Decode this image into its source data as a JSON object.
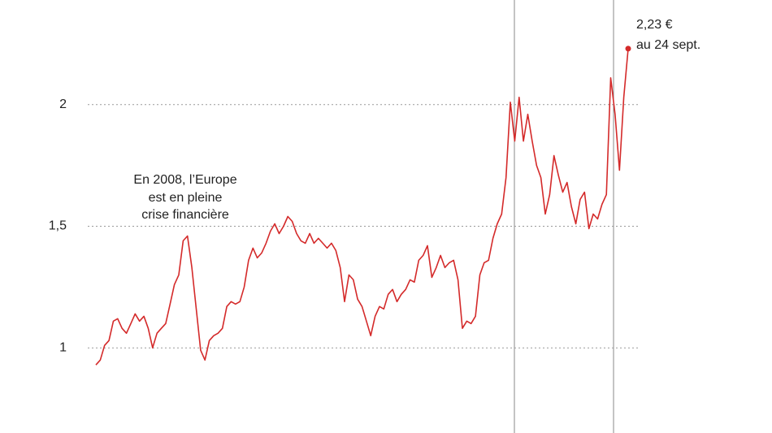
{
  "chart_data": {
    "type": "line",
    "annotations": [
      "En 2008, l’Europe",
      "est en pleine",
      "crise financière"
    ],
    "end_label": [
      "2,23 €",
      "au 24 sept."
    ],
    "color": "#d42a2a",
    "grid": true,
    "ylim": [
      0.65,
      2.43
    ],
    "yticks": [
      1,
      {
        "value": 1.5,
        "label": "1,5"
      },
      2
    ],
    "values": [
      0.93,
      0.95,
      1.01,
      1.03,
      1.11,
      1.12,
      1.08,
      1.06,
      1.1,
      1.14,
      1.11,
      1.13,
      1.08,
      1.0,
      1.06,
      1.08,
      1.1,
      1.18,
      1.26,
      1.3,
      1.44,
      1.46,
      1.33,
      1.16,
      0.99,
      0.95,
      1.03,
      1.05,
      1.06,
      1.08,
      1.17,
      1.19,
      1.18,
      1.19,
      1.25,
      1.36,
      1.41,
      1.37,
      1.39,
      1.43,
      1.48,
      1.51,
      1.47,
      1.5,
      1.54,
      1.52,
      1.47,
      1.44,
      1.43,
      1.47,
      1.43,
      1.45,
      1.43,
      1.41,
      1.43,
      1.4,
      1.33,
      1.19,
      1.3,
      1.28,
      1.2,
      1.17,
      1.11,
      1.05,
      1.13,
      1.17,
      1.16,
      1.22,
      1.24,
      1.19,
      1.22,
      1.24,
      1.28,
      1.27,
      1.36,
      1.38,
      1.42,
      1.29,
      1.33,
      1.38,
      1.33,
      1.35,
      1.36,
      1.28,
      1.08,
      1.11,
      1.1,
      1.13,
      1.3,
      1.35,
      1.36,
      1.45,
      1.51,
      1.55,
      1.7,
      2.01,
      1.85,
      2.03,
      1.85,
      1.96,
      1.85,
      1.75,
      1.7,
      1.55,
      1.63,
      1.79,
      1.71,
      1.64,
      1.68,
      1.58,
      1.51,
      1.61,
      1.64,
      1.49,
      1.55,
      1.53,
      1.59,
      1.63,
      2.11,
      1.96,
      1.73,
      2.03,
      2.23
    ]
  }
}
